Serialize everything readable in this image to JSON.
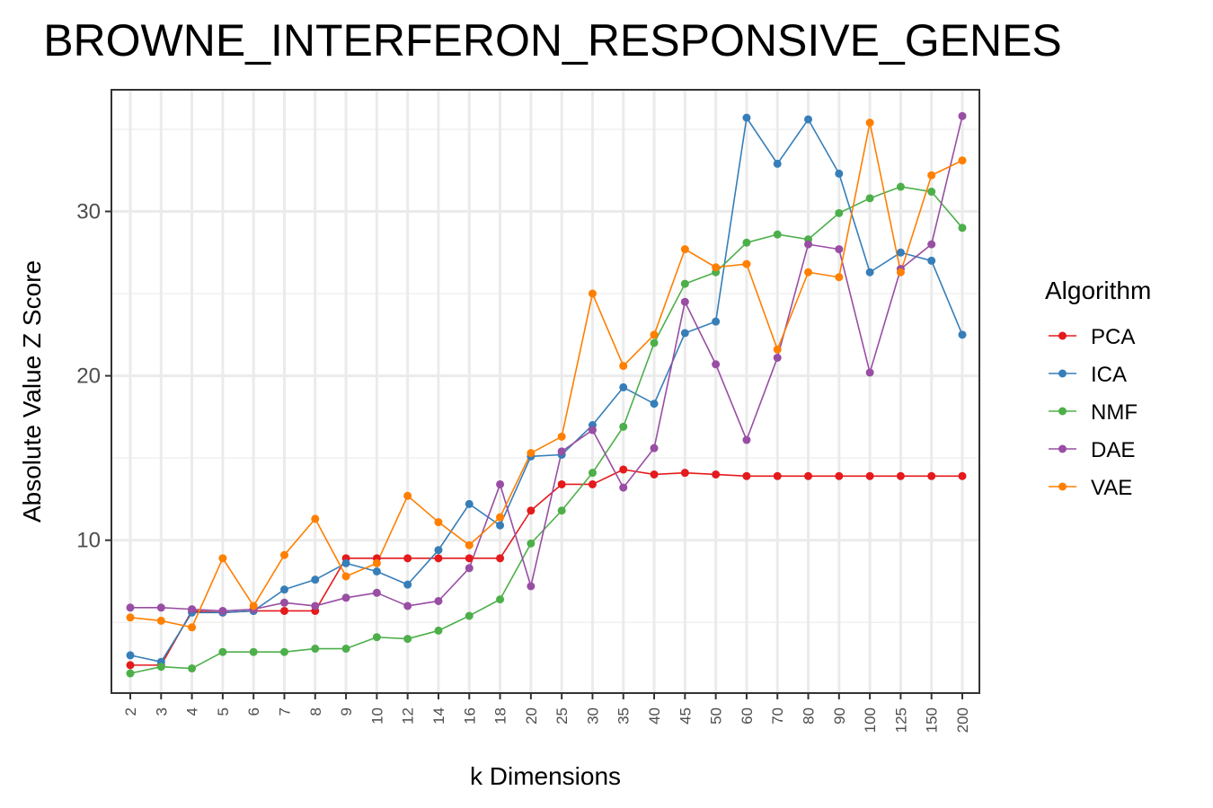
{
  "chart_data": {
    "type": "line",
    "title": "BROWNE_INTERFERON_RESPONSIVE_GENES",
    "xlabel": "k Dimensions",
    "ylabel": "Absolute Value Z Score",
    "categories": [
      "2",
      "3",
      "4",
      "5",
      "6",
      "7",
      "8",
      "9",
      "10",
      "12",
      "14",
      "16",
      "18",
      "20",
      "25",
      "30",
      "35",
      "40",
      "45",
      "50",
      "60",
      "70",
      "80",
      "90",
      "100",
      "125",
      "150",
      "200"
    ],
    "ylim": [
      0.7,
      37.4
    ],
    "yticks": [
      10,
      20,
      30
    ],
    "grid": true,
    "legend": {
      "title": "Algorithm",
      "position": "right"
    },
    "series": [
      {
        "name": "PCA",
        "color": "#e41a1c",
        "values": [
          2.4,
          2.4,
          5.7,
          5.6,
          5.7,
          5.7,
          5.7,
          8.9,
          8.9,
          8.9,
          8.9,
          8.9,
          8.9,
          11.8,
          13.4,
          13.4,
          14.3,
          14.0,
          14.1,
          14.0,
          13.9,
          13.9,
          13.9,
          13.9,
          13.9,
          13.9,
          13.9,
          13.9
        ]
      },
      {
        "name": "ICA",
        "color": "#377eb8",
        "values": [
          3.0,
          2.6,
          5.6,
          5.6,
          5.7,
          7.0,
          7.6,
          8.6,
          8.1,
          7.3,
          9.4,
          12.2,
          10.9,
          15.1,
          15.2,
          17.0,
          19.3,
          18.3,
          22.6,
          23.3,
          35.7,
          32.9,
          35.6,
          32.3,
          26.3,
          27.5,
          27.0,
          22.5
        ]
      },
      {
        "name": "NMF",
        "color": "#4daf4a",
        "values": [
          1.9,
          2.3,
          2.2,
          3.2,
          3.2,
          3.2,
          3.4,
          3.4,
          4.1,
          4.0,
          4.5,
          5.4,
          6.4,
          9.8,
          11.8,
          14.1,
          16.9,
          22.0,
          25.6,
          26.3,
          28.1,
          28.6,
          28.3,
          29.9,
          30.8,
          31.5,
          31.2,
          29.0
        ]
      },
      {
        "name": "DAE",
        "color": "#984ea3",
        "values": [
          5.9,
          5.9,
          5.8,
          5.7,
          5.8,
          6.2,
          6.0,
          6.5,
          6.8,
          6.0,
          6.3,
          8.3,
          13.4,
          7.2,
          15.4,
          16.7,
          13.2,
          15.6,
          24.5,
          20.7,
          16.1,
          21.1,
          28.0,
          27.7,
          20.2,
          26.5,
          28.0,
          35.8
        ]
      },
      {
        "name": "VAE",
        "color": "#ff7f00",
        "values": [
          5.3,
          5.1,
          4.7,
          8.9,
          6.0,
          9.1,
          11.3,
          7.8,
          8.6,
          12.7,
          11.1,
          9.7,
          11.4,
          15.3,
          16.3,
          25.0,
          20.6,
          22.5,
          27.7,
          26.6,
          26.8,
          21.6,
          26.3,
          26.0,
          35.4,
          26.3,
          32.2,
          33.1
        ]
      }
    ]
  }
}
